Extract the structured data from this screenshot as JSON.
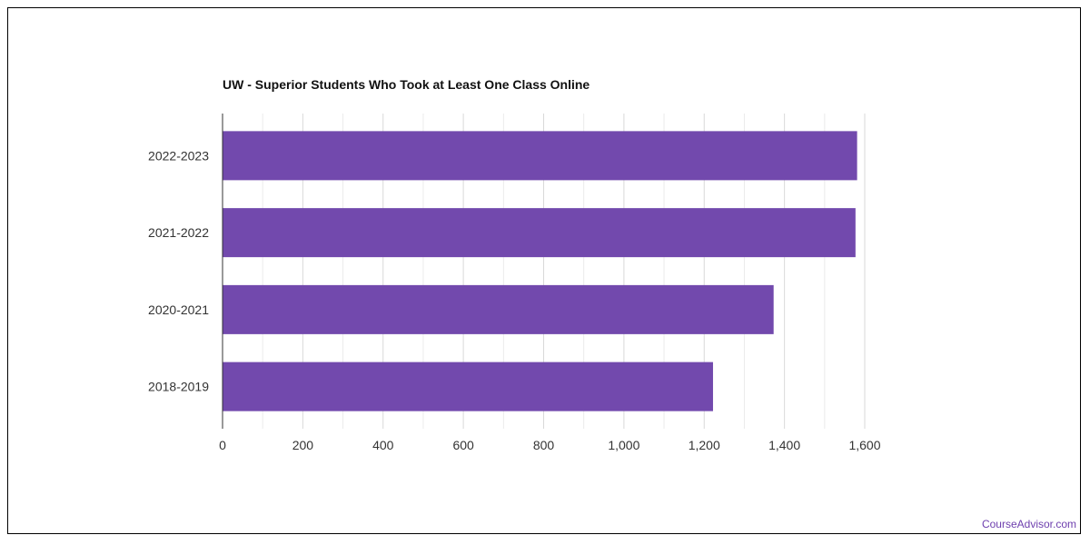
{
  "chart_data": {
    "type": "bar",
    "orientation": "horizontal",
    "title": "UW - Superior Students Who Took at Least One Class Online",
    "categories": [
      "2022-2023",
      "2021-2022",
      "2020-2021",
      "2018-2019"
    ],
    "values": [
      1581,
      1577,
      1373,
      1222
    ],
    "xlim": [
      0,
      1600
    ],
    "xticks": [
      0,
      200,
      400,
      600,
      800,
      1000,
      1200,
      1400,
      1600
    ],
    "xtick_labels": [
      "0",
      "200",
      "400",
      "600",
      "800",
      "1,000",
      "1,200",
      "1,400",
      "1,600"
    ],
    "xlabel": "",
    "ylabel": "",
    "grid": true,
    "bar_color": "#7249ad"
  },
  "footer": {
    "watermark": "CourseAdvisor.com"
  },
  "colors": {
    "bar": "#7249ad",
    "watermark": "#6e3fae",
    "grid": "#d9d9d9",
    "axis": "#333333"
  }
}
